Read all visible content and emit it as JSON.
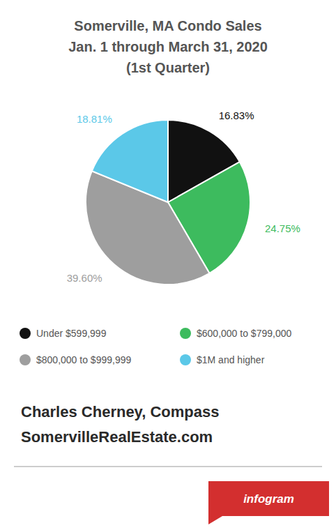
{
  "chart_data": {
    "type": "pie",
    "title": "Somerville, MA Condo Sales",
    "subtitle": [
      "Jan. 1 through March 31, 2020",
      "(1st Quarter)"
    ],
    "categories": [
      "Under $599,999",
      "$600,000 to $799,000",
      "$800,000 to $999,999",
      "$1M and higher"
    ],
    "values": [
      16.83,
      24.75,
      39.6,
      18.81
    ],
    "value_labels": [
      "16.83%",
      "24.75%",
      "39.60%",
      "18.81%"
    ],
    "colors": [
      "#111111",
      "#3dbb5e",
      "#9e9e9e",
      "#5bc8e8"
    ],
    "data_labels": true,
    "legend": "bottom",
    "annotations": [
      "Charles Cherney, Compass",
      "SomervilleRealEstate.com",
      "infogram"
    ]
  }
}
